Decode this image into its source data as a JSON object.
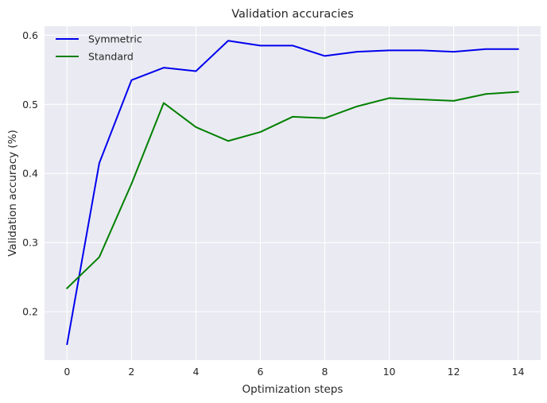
{
  "chart_data": {
    "type": "line",
    "title": "Validation accuracies",
    "xlabel": "Optimization steps",
    "ylabel": "Validation accuracy (%)",
    "xlim": [
      -0.7,
      14.7
    ],
    "ylim": [
      0.13,
      0.613
    ],
    "xticks": [
      0,
      2,
      4,
      6,
      8,
      10,
      12,
      14
    ],
    "yticks": [
      0.2,
      0.3,
      0.4,
      0.5,
      0.6
    ],
    "grid": true,
    "legend_position": "top-left",
    "background_color": "#eaeaf2",
    "x": [
      0,
      1,
      2,
      3,
      4,
      5,
      6,
      7,
      8,
      9,
      10,
      11,
      12,
      13,
      14
    ],
    "series": [
      {
        "name": "Symmetric",
        "color": "#0000ee",
        "values": [
          0.153,
          0.415,
          0.535,
          0.553,
          0.548,
          0.592,
          0.585,
          0.585,
          0.57,
          0.576,
          0.578,
          0.578,
          0.576,
          0.58,
          0.58
        ]
      },
      {
        "name": "Standard",
        "color": "#008000",
        "values": [
          0.234,
          0.279,
          0.385,
          0.502,
          0.467,
          0.447,
          0.46,
          0.482,
          0.48,
          0.497,
          0.509,
          0.507,
          0.505,
          0.515,
          0.518
        ]
      }
    ]
  }
}
